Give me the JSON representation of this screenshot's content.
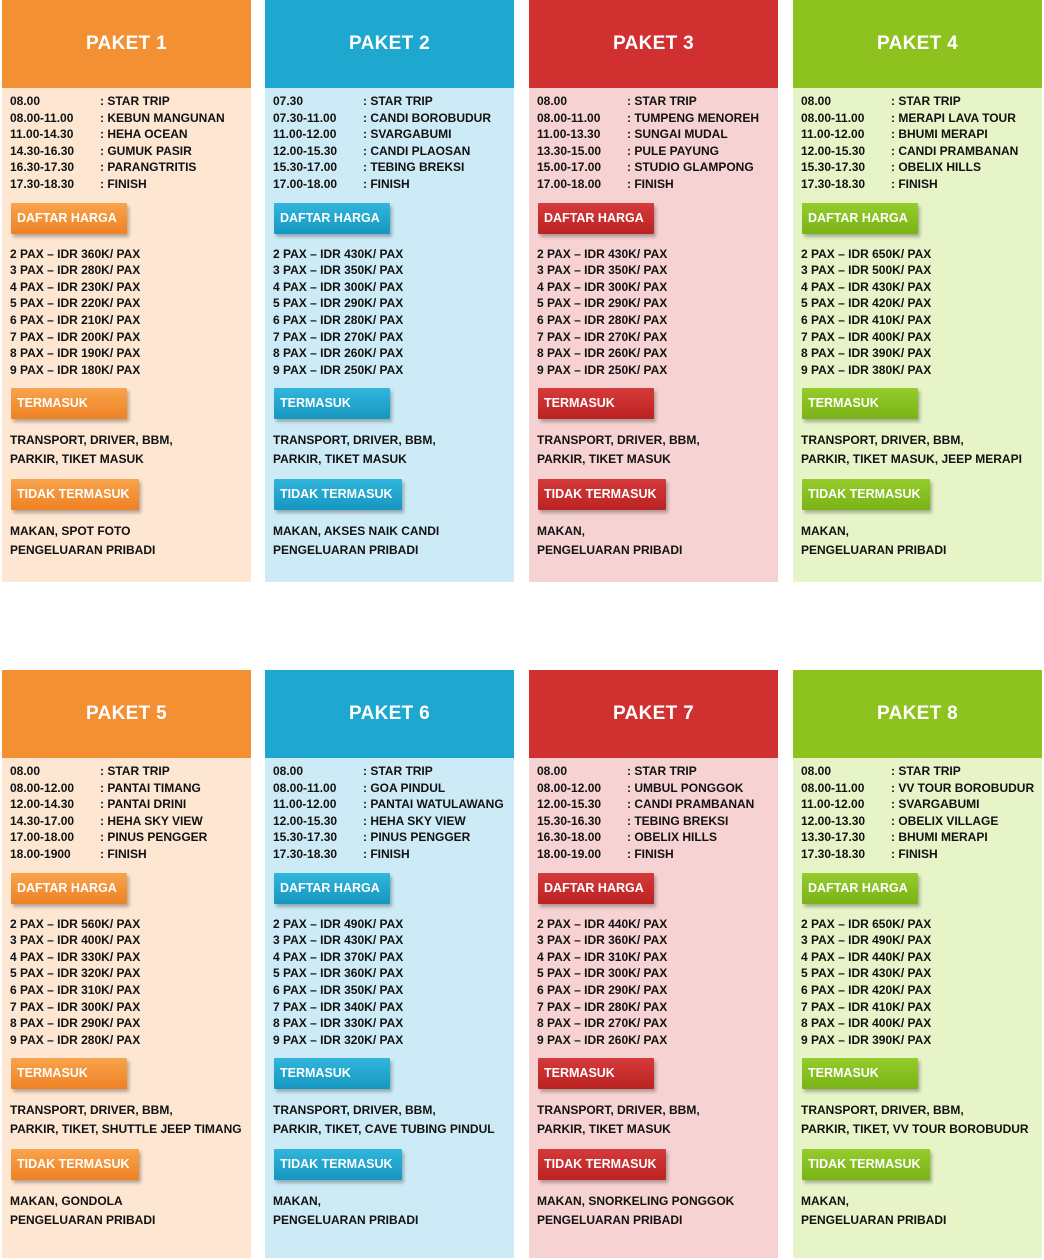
{
  "colors": {
    "orange": "#f29033",
    "blue": "#1ea7cf",
    "red": "#d13030",
    "green": "#8ec31f"
  },
  "labels": {
    "price": "DAFTAR HARGA",
    "included": "TERMASUK",
    "excluded": "TIDAK TERMASUK"
  },
  "packages": [
    {
      "title": "PAKET 1",
      "schedule": [
        {
          "time": "08.00",
          "activity": ": STAR TRIP"
        },
        {
          "time": "08.00-11.00",
          "activity": ": KEBUN MANGUNAN"
        },
        {
          "time": "11.00-14.30",
          "activity": ": HEHA OCEAN"
        },
        {
          "time": "14.30-16.30",
          "activity": ": GUMUK PASIR"
        },
        {
          "time": "16.30-17.30",
          "activity": ": PARANGTRITIS"
        },
        {
          "time": "17.30-18.30",
          "activity": ": FINISH"
        }
      ],
      "prices": [
        "2 PAX – IDR 360K/ PAX",
        "3 PAX – IDR 280K/ PAX",
        "4 PAX – IDR 230K/ PAX",
        "5 PAX – IDR 220K/ PAX",
        "6 PAX – IDR 210K/ PAX",
        "7 PAX – IDR 200K/ PAX",
        "8 PAX – IDR 190K/ PAX",
        "9 PAX – IDR 180K/ PAX"
      ],
      "included": [
        "TRANSPORT, DRIVER, BBM,",
        "PARKIR, TIKET MASUK"
      ],
      "excluded": [
        "MAKAN, SPOT FOTO",
        "PENGELUARAN PRIBADI"
      ]
    },
    {
      "title": "PAKET 2",
      "schedule": [
        {
          "time": "07.30",
          "activity": ": STAR TRIP"
        },
        {
          "time": "07.30-11.00",
          "activity": ": CANDI BOROBUDUR"
        },
        {
          "time": "11.00-12.00",
          "activity": ": SVARGABUMI"
        },
        {
          "time": "12.00-15.30",
          "activity": ": CANDI PLAOSAN"
        },
        {
          "time": "15.30-17.00",
          "activity": ": TEBING BREKSI"
        },
        {
          "time": "17.00-18.00",
          "activity": ": FINISH"
        }
      ],
      "prices": [
        "2 PAX – IDR 430K/ PAX",
        "3 PAX – IDR 350K/ PAX",
        "4 PAX – IDR 300K/ PAX",
        "5 PAX – IDR 290K/ PAX",
        "6 PAX – IDR 280K/ PAX",
        "7 PAX – IDR 270K/ PAX",
        "8 PAX – IDR 260K/ PAX",
        "9 PAX – IDR 250K/ PAX"
      ],
      "included": [
        "TRANSPORT, DRIVER, BBM,",
        "PARKIR, TIKET MASUK"
      ],
      "excluded": [
        "MAKAN, AKSES NAIK CANDI",
        "PENGELUARAN PRIBADI"
      ]
    },
    {
      "title": "PAKET 3",
      "schedule": [
        {
          "time": "08.00",
          "activity": ": STAR TRIP"
        },
        {
          "time": "08.00-11.00",
          "activity": ": TUMPENG MENOREH"
        },
        {
          "time": "11.00-13.30",
          "activity": ": SUNGAI MUDAL"
        },
        {
          "time": "13.30-15.00",
          "activity": ": PULE PAYUNG"
        },
        {
          "time": "15.00-17.00",
          "activity": ": STUDIO GLAMPONG"
        },
        {
          "time": "17.00-18.00",
          "activity": ": FINISH"
        }
      ],
      "prices": [
        "2 PAX – IDR 430K/ PAX",
        "3 PAX – IDR 350K/ PAX",
        "4 PAX – IDR 300K/ PAX",
        "5 PAX – IDR 290K/ PAX",
        "6 PAX – IDR 280K/ PAX",
        "7 PAX – IDR 270K/ PAX",
        "8 PAX – IDR 260K/ PAX",
        "9 PAX – IDR 250K/ PAX"
      ],
      "included": [
        "TRANSPORT, DRIVER, BBM,",
        "PARKIR, TIKET MASUK"
      ],
      "excluded": [
        "MAKAN,",
        "PENGELUARAN PRIBADI"
      ]
    },
    {
      "title": "PAKET 4",
      "schedule": [
        {
          "time": "08.00",
          "activity": ": STAR TRIP"
        },
        {
          "time": "08.00-11.00",
          "activity": ": MERAPI LAVA TOUR"
        },
        {
          "time": "11.00-12.00",
          "activity": ": BHUMI MERAPI"
        },
        {
          "time": "12.00-15.30",
          "activity": ": CANDI PRAMBANAN"
        },
        {
          "time": "15.30-17.30",
          "activity": ": OBELIX HILLS"
        },
        {
          "time": "17.30-18.30",
          "activity": ": FINISH"
        }
      ],
      "prices": [
        "2 PAX – IDR 650K/ PAX",
        "3 PAX – IDR 500K/ PAX",
        "4 PAX – IDR 430K/ PAX",
        "5 PAX – IDR 420K/ PAX",
        "6 PAX – IDR 410K/ PAX",
        "7 PAX – IDR 400K/ PAX",
        "8 PAX – IDR 390K/ PAX",
        "9 PAX – IDR 380K/ PAX"
      ],
      "included": [
        "TRANSPORT, DRIVER, BBM,",
        "PARKIR, TIKET MASUK, JEEP MERAPI"
      ],
      "excluded": [
        "MAKAN,",
        "PENGELUARAN PRIBADI"
      ]
    },
    {
      "title": "PAKET 5",
      "schedule": [
        {
          "time": "08.00",
          "activity": ": STAR TRIP"
        },
        {
          "time": "08.00-12.00",
          "activity": ": PANTAI TIMANG"
        },
        {
          "time": "12.00-14.30",
          "activity": ": PANTAI DRINI"
        },
        {
          "time": "14.30-17.00",
          "activity": ": HEHA SKY VIEW"
        },
        {
          "time": "17.00-18.00",
          "activity": ": PINUS PENGGER"
        },
        {
          "time": "18.00-1900",
          "activity": ": FINISH"
        }
      ],
      "prices": [
        "2 PAX – IDR 560K/ PAX",
        "3 PAX – IDR 400K/ PAX",
        "4 PAX – IDR 330K/ PAX",
        "5 PAX – IDR 320K/ PAX",
        "6 PAX – IDR 310K/ PAX",
        "7 PAX – IDR 300K/ PAX",
        "8 PAX – IDR 290K/ PAX",
        "9 PAX – IDR 280K/ PAX"
      ],
      "included": [
        "TRANSPORT, DRIVER, BBM,",
        "PARKIR, TIKET, SHUTTLE JEEP TIMANG"
      ],
      "excluded": [
        "MAKAN, GONDOLA",
        "PENGELUARAN PRIBADI"
      ]
    },
    {
      "title": "PAKET 6",
      "schedule": [
        {
          "time": "08.00",
          "activity": ": STAR TRIP"
        },
        {
          "time": "08.00-11.00",
          "activity": ": GOA PINDUL"
        },
        {
          "time": "11.00-12.00",
          "activity": ": PANTAI WATULAWANG"
        },
        {
          "time": "12.00-15.30",
          "activity": ": HEHA SKY VIEW"
        },
        {
          "time": "15.30-17.30",
          "activity": ": PINUS PENGGER"
        },
        {
          "time": "17.30-18.30",
          "activity": ": FINISH"
        }
      ],
      "prices": [
        "2 PAX – IDR 490K/ PAX",
        "3 PAX – IDR 430K/ PAX",
        "4 PAX – IDR 370K/ PAX",
        "5 PAX – IDR 360K/ PAX",
        "6 PAX – IDR 350K/ PAX",
        "7 PAX – IDR 340K/ PAX",
        "8 PAX – IDR 330K/ PAX",
        "9 PAX – IDR 320K/ PAX"
      ],
      "included": [
        "TRANSPORT, DRIVER, BBM,",
        "PARKIR, TIKET, CAVE TUBING PINDUL"
      ],
      "excluded": [
        "MAKAN,",
        "PENGELUARAN PRIBADI"
      ]
    },
    {
      "title": "PAKET 7",
      "schedule": [
        {
          "time": "08.00",
          "activity": ": STAR TRIP"
        },
        {
          "time": "08.00-12.00",
          "activity": ": UMBUL PONGGOK"
        },
        {
          "time": "12.00-15.30",
          "activity": ": CANDI PRAMBANAN"
        },
        {
          "time": "15.30-16.30",
          "activity": ": TEBING BREKSI"
        },
        {
          "time": "16.30-18.00",
          "activity": ": OBELIX HILLS"
        },
        {
          "time": "18.00-19.00",
          "activity": ": FINISH"
        }
      ],
      "prices": [
        "2 PAX – IDR 440K/ PAX",
        "3 PAX – IDR 360K/ PAX",
        "4 PAX – IDR 310K/ PAX",
        "5 PAX – IDR 300K/ PAX",
        "6 PAX – IDR 290K/ PAX",
        "7 PAX – IDR 280K/ PAX",
        "8 PAX – IDR 270K/ PAX",
        "9 PAX – IDR 260K/ PAX"
      ],
      "included": [
        "TRANSPORT, DRIVER, BBM,",
        "PARKIR, TIKET MASUK"
      ],
      "excluded": [
        "MAKAN, SNORKELING PONGGOK",
        "PENGELUARAN PRIBADI"
      ]
    },
    {
      "title": "PAKET 8",
      "schedule": [
        {
          "time": "08.00",
          "activity": ": STAR TRIP"
        },
        {
          "time": "08.00-11.00",
          "activity": ": VV TOUR BOROBUDUR"
        },
        {
          "time": "11.00-12.00",
          "activity": ": SVARGABUMI"
        },
        {
          "time": "12.00-13.30",
          "activity": ": OBELIX VILLAGE"
        },
        {
          "time": "13.30-17.30",
          "activity": ": BHUMI MERAPI"
        },
        {
          "time": "17.30-18.30",
          "activity": ": FINISH"
        }
      ],
      "prices": [
        "2 PAX – IDR 650K/ PAX",
        "3 PAX – IDR 490K/ PAX",
        "4 PAX – IDR 440K/ PAX",
        "5 PAX – IDR 430K/ PAX",
        "6 PAX – IDR 420K/ PAX",
        "7 PAX – IDR 410K/ PAX",
        "8 PAX – IDR 400K/ PAX",
        "9 PAX – IDR 390K/ PAX"
      ],
      "included": [
        "TRANSPORT, DRIVER, BBM,",
        "PARKIR, TIKET, VV TOUR BOROBUDUR"
      ],
      "excluded": [
        "MAKAN,",
        "PENGELUARAN PRIBADI"
      ]
    }
  ]
}
